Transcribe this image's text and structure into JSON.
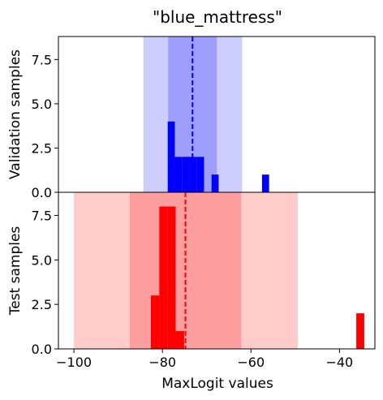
{
  "chart_data": {
    "type": "bar",
    "title": "\"blue_mattress\"",
    "xlabel": "MaxLogit values",
    "xlim": [
      -103.5,
      -32
    ],
    "xticks": [
      -100,
      -80,
      -60,
      -40
    ],
    "xtick_labels": [
      "−100",
      "−80",
      "−60",
      "−40"
    ],
    "grid": false,
    "panels": [
      {
        "name": "validation",
        "ylabel": "Validation samples",
        "ylim": [
          0,
          8.8
        ],
        "yticks": [
          0,
          2.5,
          5.0,
          7.5
        ],
        "ytick_labels": [
          "0.0",
          "2.5",
          "5.0",
          "7.5"
        ],
        "color": "#0000ff",
        "mean": -73.2,
        "band_inner": [
          -78.7,
          -67.7
        ],
        "band_outer": [
          -84.3,
          -62.0
        ],
        "band_inner_color": "#6666ff",
        "band_outer_color": "#9999ff",
        "bins": [
          {
            "x0": -78.8,
            "x1": -77.2,
            "count": 4
          },
          {
            "x0": -77.2,
            "x1": -75.5,
            "count": 2
          },
          {
            "x0": -75.5,
            "x1": -73.9,
            "count": 2
          },
          {
            "x0": -73.9,
            "x1": -72.2,
            "count": 2
          },
          {
            "x0": -72.2,
            "x1": -70.6,
            "count": 2
          },
          {
            "x0": -68.9,
            "x1": -67.3,
            "count": 1
          },
          {
            "x0": -57.5,
            "x1": -55.9,
            "count": 1
          }
        ]
      },
      {
        "name": "test",
        "ylabel": "Test samples",
        "ylim": [
          0,
          8.8
        ],
        "yticks": [
          0,
          2.5,
          5.0,
          7.5
        ],
        "ytick_labels": [
          "0.0",
          "2.5",
          "5.0",
          "7.5"
        ],
        "color": "#ff0000",
        "mean": -74.8,
        "band_inner": [
          -87.4,
          -62.2
        ],
        "band_outer": [
          -100.0,
          -49.4
        ],
        "band_inner_color": "#ff6666",
        "band_outer_color": "#ff9999",
        "bins": [
          {
            "x0": -82.6,
            "x1": -80.7,
            "count": 3
          },
          {
            "x0": -80.7,
            "x1": -78.9,
            "count": 8
          },
          {
            "x0": -78.9,
            "x1": -77.0,
            "count": 8
          },
          {
            "x0": -77.0,
            "x1": -75.1,
            "count": 1
          },
          {
            "x0": -36.2,
            "x1": -34.4,
            "count": 2
          }
        ]
      }
    ]
  }
}
